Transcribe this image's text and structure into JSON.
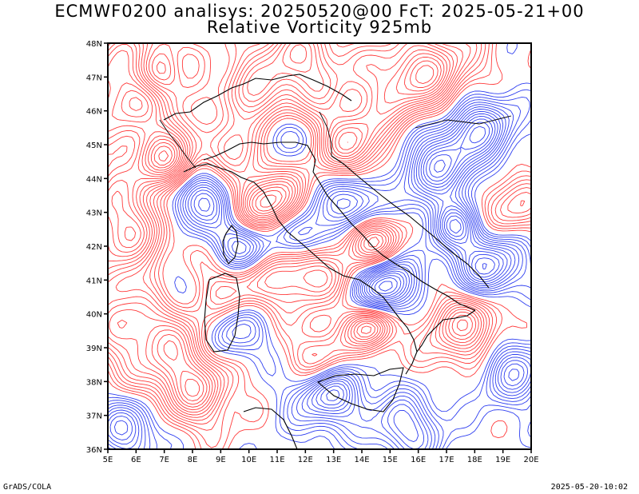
{
  "title": {
    "line1": "ECMWF0200 analisys: 20250520@00 FcT: 2025-05-21+00",
    "line2": "Relative Vorticity 925mb"
  },
  "footer": {
    "left": "GrADS/COLA",
    "right": "2025-05-20-10:02"
  },
  "map": {
    "lon_range": [
      5,
      20
    ],
    "lat_range": [
      36,
      48
    ],
    "x_ticks": [
      "5E",
      "6E",
      "7E",
      "8E",
      "9E",
      "10E",
      "11E",
      "12E",
      "13E",
      "14E",
      "15E",
      "16E",
      "17E",
      "18E",
      "19E",
      "20E"
    ],
    "y_ticks": [
      "36N",
      "37N",
      "38N",
      "39N",
      "40N",
      "41N",
      "42N",
      "43N",
      "44N",
      "45N",
      "46N",
      "47N",
      "48N"
    ],
    "colors": {
      "positive": "#ff3b3b",
      "negative": "#2f3ff0",
      "coast": "#000000",
      "frame": "#000000"
    },
    "field": "Relative Vorticity",
    "level": "925mb"
  }
}
